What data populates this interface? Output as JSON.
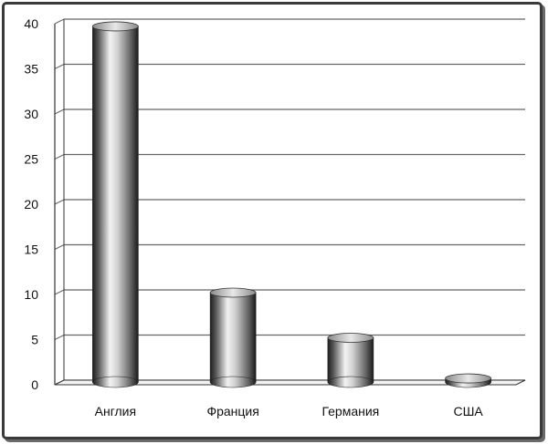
{
  "chart_data": {
    "type": "bar",
    "title": "",
    "xlabel": "",
    "ylabel": "",
    "categories": [
      "Англия",
      "Франция",
      "Германия",
      "США"
    ],
    "values": [
      39.5,
      10,
      5,
      0.5
    ],
    "ylim": [
      0,
      40
    ],
    "yticks": [
      "0",
      "5",
      "10",
      "15",
      "20",
      "25",
      "30",
      "35",
      "40"
    ],
    "grid": true,
    "legend": "none",
    "style": "3d-cylinder",
    "colors": {
      "bar_dark": "#1e1e1e",
      "bar_light": "#f2f2f2",
      "grid": "#666666",
      "axis": "#333333"
    }
  }
}
